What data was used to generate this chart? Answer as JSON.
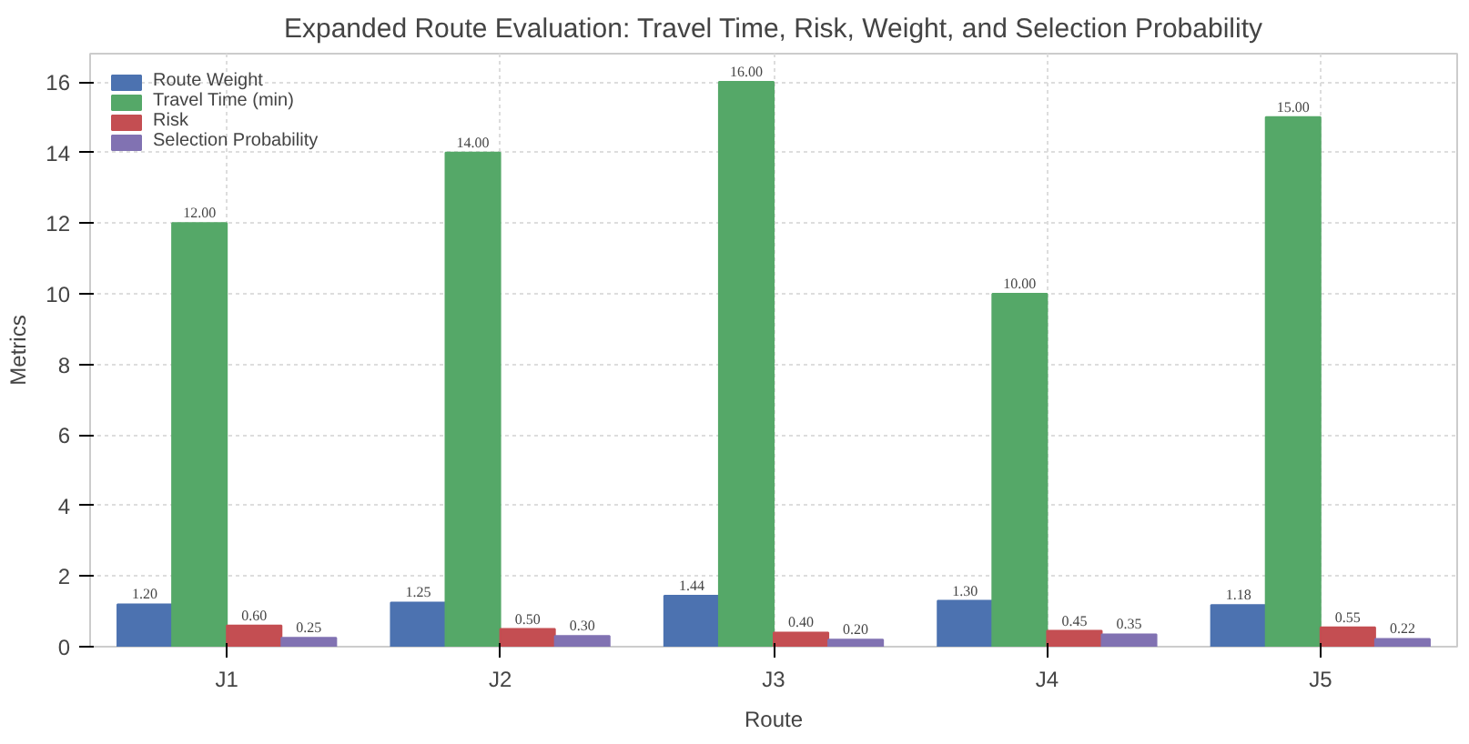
{
  "chart_data": {
    "type": "bar",
    "title": "Expanded Route Evaluation: Travel Time, Risk, Weight, and Selection Probability",
    "xlabel": "Route",
    "ylabel": "Metrics",
    "categories": [
      "J1",
      "J2",
      "J3",
      "J4",
      "J5"
    ],
    "series": [
      {
        "name": "Route Weight",
        "color": "#4c72b0",
        "values": [
          1.2,
          1.25,
          1.44,
          1.3,
          1.18
        ],
        "value_labels": [
          "1.20",
          "1.25",
          "1.44",
          "1.30",
          "1.18"
        ]
      },
      {
        "name": "Travel Time (min)",
        "color": "#55a868",
        "values": [
          12,
          14,
          16,
          10,
          15
        ],
        "value_labels": [
          "12.00",
          "14.00",
          "16.00",
          "10.00",
          "15.00"
        ]
      },
      {
        "name": "Risk",
        "color": "#c44e52",
        "values": [
          0.6,
          0.5,
          0.4,
          0.45,
          0.55
        ],
        "value_labels": [
          "0.60",
          "0.50",
          "0.40",
          "0.45",
          "0.55"
        ]
      },
      {
        "name": "Selection Probability",
        "color": "#8172b2",
        "values": [
          0.25,
          0.3,
          0.2,
          0.35,
          0.22
        ],
        "value_labels": [
          "0.25",
          "0.30",
          "0.20",
          "0.35",
          "0.22"
        ]
      }
    ],
    "ylim": [
      0,
      16.8
    ],
    "yticks": [
      0,
      2,
      4,
      6,
      8,
      10,
      12,
      14,
      16
    ],
    "grid": true,
    "legend": "top left"
  }
}
